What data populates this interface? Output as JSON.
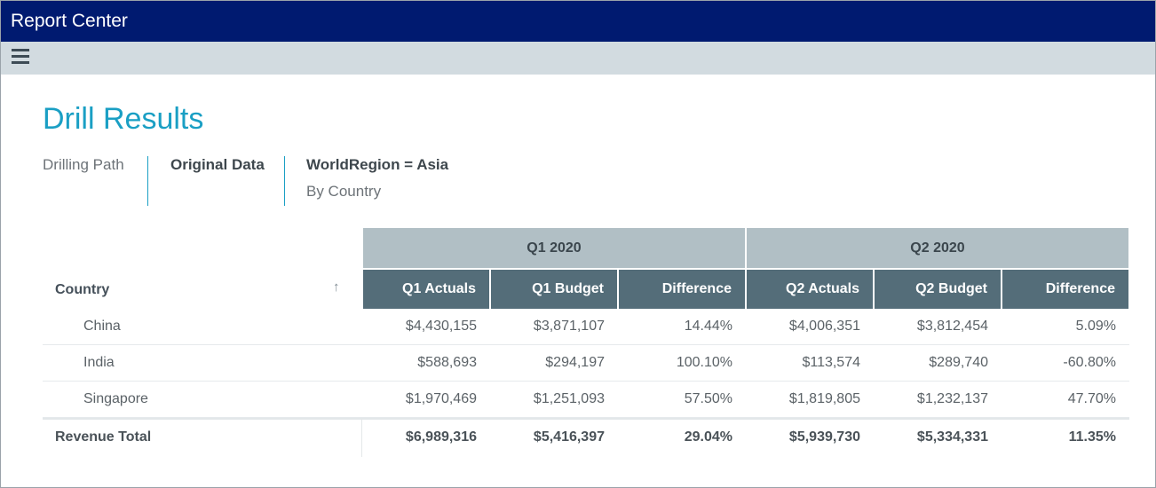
{
  "window": {
    "title": "Report Center"
  },
  "toolbar": {
    "menu_icon": "hamburger-menu-icon"
  },
  "page": {
    "title": "Drill Results",
    "drilling_path_label": "Drilling Path",
    "breadcrumb": {
      "original": "Original Data",
      "filter": "WorldRegion = Asia",
      "sub": "By Country"
    }
  },
  "table": {
    "row_header": "Country",
    "sort_icon": "sort-ascending-icon",
    "groups": [
      "Q1 2020",
      "Q2 2020"
    ],
    "columns": [
      "Q1 Actuals",
      "Q1 Budget",
      "Difference",
      "Q2 Actuals",
      "Q2 Budget",
      "Difference"
    ],
    "rows": [
      {
        "name": "China",
        "values": [
          "$4,430,155",
          "$3,871,107",
          "14.44%",
          "$4,006,351",
          "$3,812,454",
          "5.09%"
        ]
      },
      {
        "name": "India",
        "values": [
          "$588,693",
          "$294,197",
          "100.10%",
          "$113,574",
          "$289,740",
          "-60.80%"
        ]
      },
      {
        "name": "Singapore",
        "values": [
          "$1,970,469",
          "$1,251,093",
          "57.50%",
          "$1,819,805",
          "$1,232,137",
          "47.70%"
        ]
      }
    ],
    "total": {
      "name": "Revenue Total",
      "values": [
        "$6,989,316",
        "$5,416,397",
        "29.04%",
        "$5,939,730",
        "$5,334,331",
        "11.35%"
      ]
    }
  },
  "colors": {
    "titlebar": "#001a70",
    "toolbar": "#d2dbe0",
    "accent": "#1a9fc4",
    "group_header": "#b1bfc5",
    "column_header": "#546d79"
  }
}
